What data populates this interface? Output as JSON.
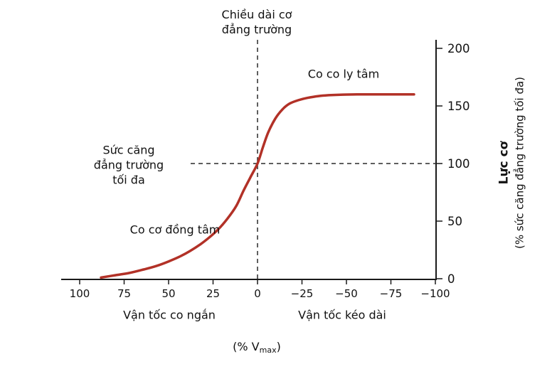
{
  "page": {
    "background": "#ffffff"
  },
  "chart_data": {
    "type": "line",
    "title": "",
    "x_axis": {
      "range": [
        100,
        -100
      ],
      "ticks": [
        100,
        75,
        50,
        25,
        0,
        -25,
        -50,
        -75,
        -100
      ],
      "label_left": "Vận tốc co ngắn",
      "label_right": "Vận tốc kéo dài",
      "unit_prefix": "(% V",
      "unit_sub": "max",
      "unit_suffix": ")"
    },
    "y_axis": {
      "range": [
        0,
        200
      ],
      "ticks": [
        0,
        50,
        100,
        150,
        200
      ],
      "title": "Lực cơ",
      "subtitle": "(% sức căng đẳng trường tối đa)"
    },
    "reference_lines": [
      {
        "axis": "x",
        "value": 0,
        "style": "dashed"
      },
      {
        "axis": "y",
        "value": 100,
        "style": "dashed"
      }
    ],
    "series": [
      {
        "name": "force-velocity-curve",
        "color": "#b23127",
        "x": [
          88,
          80,
          72,
          64,
          57,
          50,
          44,
          38,
          32,
          27,
          22,
          17,
          12,
          8,
          4,
          0,
          -3,
          -6,
          -10,
          -14,
          -18,
          -23,
          -28,
          -34,
          -40,
          -48,
          -56,
          -64,
          -72,
          -80,
          -88
        ],
        "y": [
          1,
          3,
          5,
          8,
          11,
          15,
          19,
          24,
          30,
          36,
          43,
          52,
          63,
          76,
          88,
          100,
          114,
          127,
          139,
          147,
          152,
          155,
          157,
          158.5,
          159.3,
          159.8,
          160,
          160,
          160,
          160,
          160
        ]
      }
    ],
    "annotations": {
      "isometric_length": "Chiều dài cơ\nđẳng trường",
      "eccentric_region": "Co co ly tâm",
      "max_isometric_tension": "Sức căng\nđẳng trường\ntối đa",
      "concentric_region": "Co cơ đồng tâm"
    },
    "colors": {
      "curve": "#b23127",
      "axis": "#1a1a1a",
      "dash": "#2a2a2a",
      "text": "#111111"
    }
  }
}
